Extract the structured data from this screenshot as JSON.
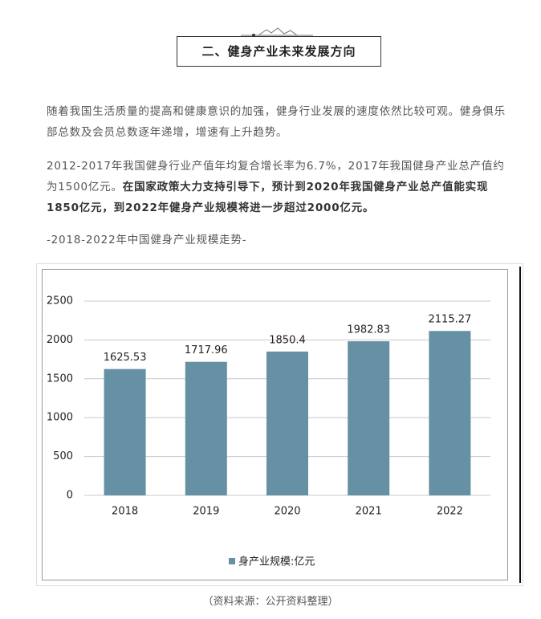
{
  "header": {
    "title": "二、健身产业未来发展方向"
  },
  "paragraphs": [
    {
      "text": "随着我国生活质量的提高和健康意识的加强，健身行业发展的速度依然比较可观。健身俱乐部总数及会员总数逐年递增，增速有上升趋势。"
    },
    {
      "text": "2012-2017年我国健身行业产值年均复合增长率为6.7%，2017年我国健身产业总产值约为1500亿元。",
      "bold": "在国家政策大力支持引导下，预计到2020年我国健身产业总产值能实现1850亿元，到2022年健身产业规模将进一步超过2000亿元。"
    }
  ],
  "figure_title": "-2018-2022年中国健身产业规模走势-",
  "chart_data": {
    "type": "bar",
    "categories": [
      "2018",
      "2019",
      "2020",
      "2021",
      "2022"
    ],
    "series": [
      {
        "name": "身产业规模:亿元",
        "color": "#6690a4",
        "values": [
          1625.53,
          1717.96,
          1850.4,
          1982.83,
          2115.27
        ]
      }
    ],
    "ylim": [
      0,
      2500
    ],
    "yticks": [
      0,
      500,
      1000,
      1500,
      2000,
      2500
    ],
    "grid": true,
    "legend": "bottom"
  },
  "caption": "（资料来源：公开资料整理）"
}
